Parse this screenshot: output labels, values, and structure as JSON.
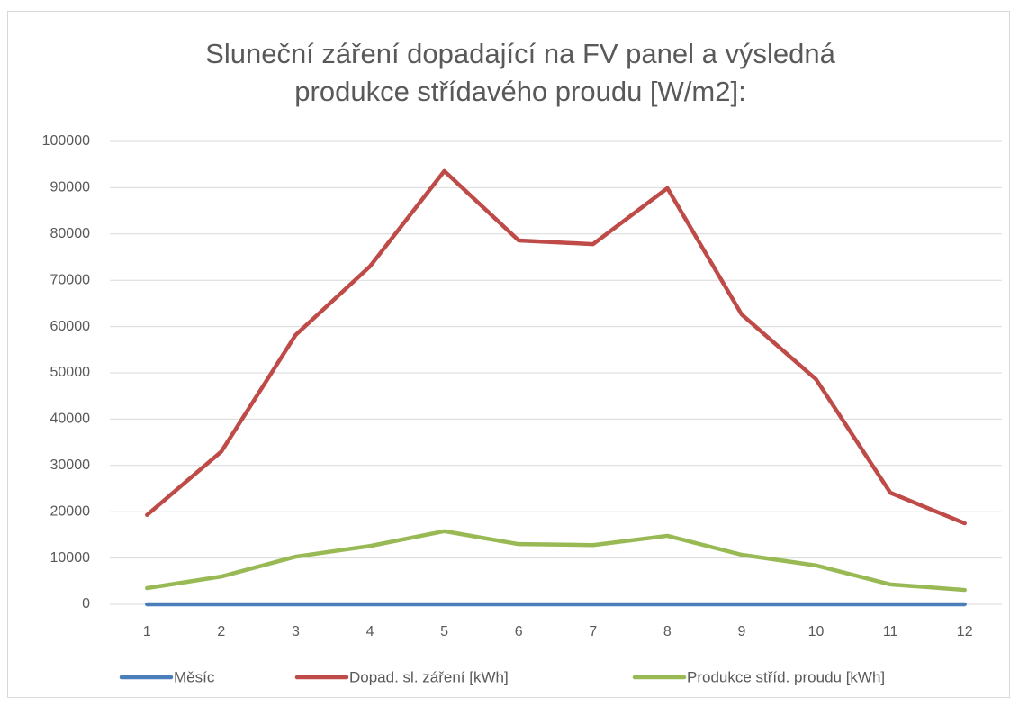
{
  "chart_data": {
    "type": "line",
    "title": [
      "Sluneční záření dopadající na FV panel a výsledná",
      "produkce střídavého proudu [W/m2]:"
    ],
    "categories": [
      "1",
      "2",
      "3",
      "4",
      "5",
      "6",
      "7",
      "8",
      "9",
      "10",
      "11",
      "12"
    ],
    "series": [
      {
        "name": "Měsíc",
        "color": "#4a7ebb",
        "values": [
          1,
          2,
          3,
          4,
          5,
          6,
          7,
          8,
          9,
          10,
          11,
          12
        ]
      },
      {
        "name": "Dopad. sl. záření [kWh]",
        "color": "#be4b48",
        "values": [
          19300,
          33000,
          58200,
          73000,
          93600,
          78600,
          77800,
          89900,
          62600,
          48600,
          24100,
          17500
        ]
      },
      {
        "name": "Produkce stříd. proudu [kWh]",
        "color": "#98b954",
        "values": [
          3500,
          6000,
          10300,
          12600,
          15800,
          13000,
          12800,
          14800,
          10700,
          8400,
          4300,
          3100
        ]
      }
    ],
    "ylim": [
      0,
      100000
    ],
    "yticks": [
      0,
      10000,
      20000,
      30000,
      40000,
      50000,
      60000,
      70000,
      80000,
      90000,
      100000
    ],
    "grid": true,
    "legend": "bottom"
  }
}
